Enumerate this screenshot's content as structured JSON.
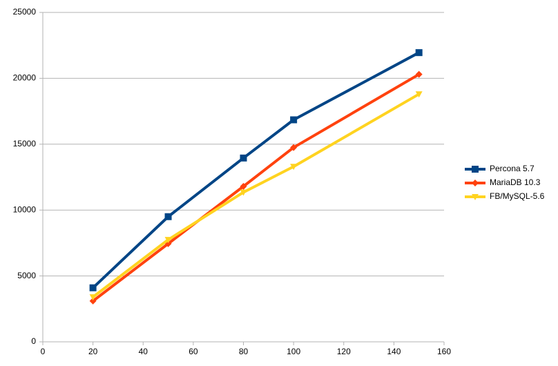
{
  "chart_data": {
    "type": "line",
    "x": [
      20,
      50,
      80,
      100,
      150
    ],
    "series": [
      {
        "name": "Percona 5.7",
        "color": "#004586",
        "marker": "square",
        "values": [
          4100,
          9500,
          13950,
          16850,
          21950
        ]
      },
      {
        "name": "MariaDB 10.3",
        "color": "#ff420e",
        "marker": "diamond",
        "values": [
          3100,
          7450,
          11800,
          14750,
          20300
        ]
      },
      {
        "name": "FB/MySQL-5.6",
        "color": "#ffd320",
        "marker": "triangle-down",
        "values": [
          3400,
          7750,
          11350,
          13300,
          18800
        ]
      }
    ],
    "xlim": [
      0,
      160
    ],
    "xticks": [
      0,
      20,
      40,
      60,
      80,
      100,
      120,
      140,
      160
    ],
    "ylim": [
      0,
      25000
    ],
    "yticks": [
      0,
      5000,
      10000,
      15000,
      20000,
      25000
    ],
    "grid": true,
    "legend": "right"
  }
}
